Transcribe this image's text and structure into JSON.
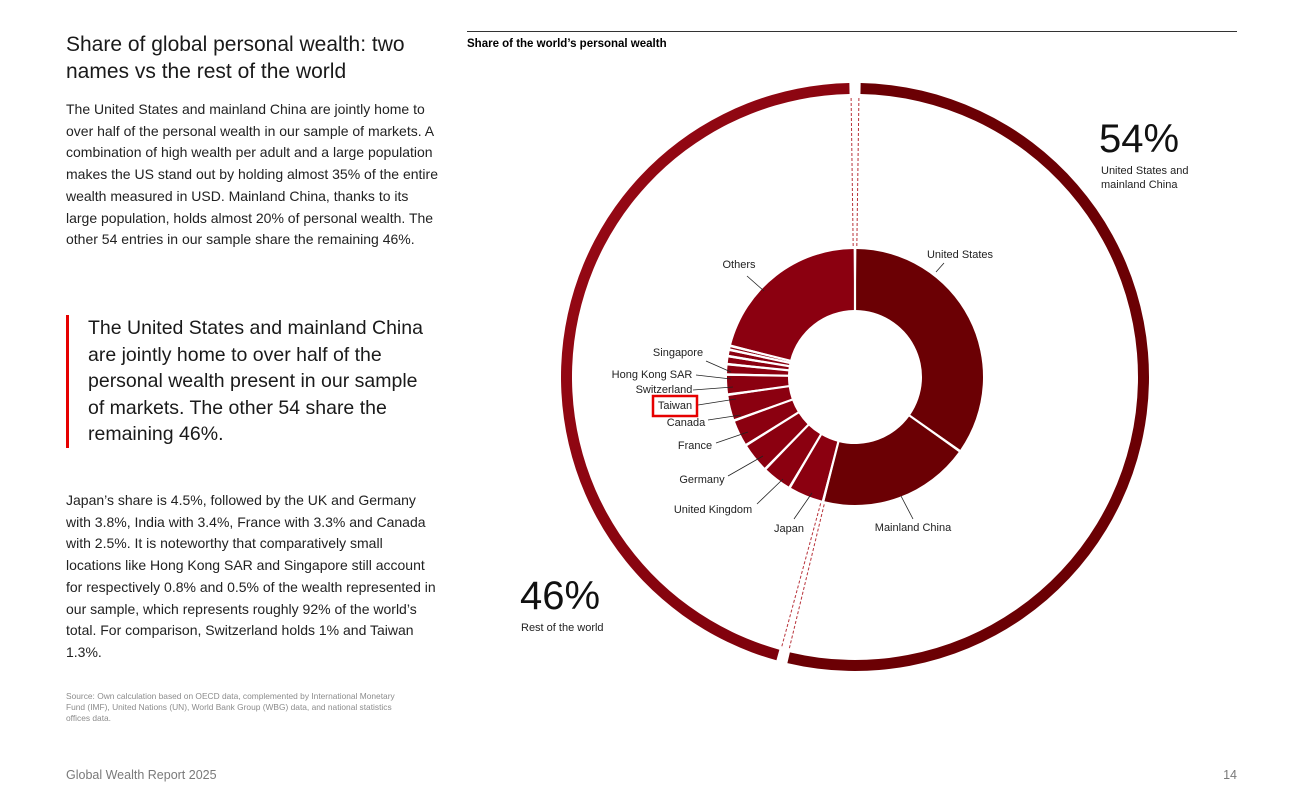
{
  "text": {
    "title": "Share of global personal wealth: two names vs the rest of the world",
    "para1": "The United States and mainland China are jointly home to over half of the personal wealth in our sample of markets. A combination of high wealth per adult and a large population makes the US stand out by holding almost 35% of the entire wealth measured in USD. Mainland China, thanks to its large population, holds almost 20% of personal wealth. The other 54 entries in our sample share the remaining 46%.",
    "quote": "The United States and mainland China are jointly home to over half of the personal wealth present in our sample of markets. The other 54 share the remaining 46%.",
    "para2": "Japan’s share is 4.5%, followed by the UK and Germany with 3.8%, India with 3.4%, France with 3.3% and Canada with 2.5%. It is noteworthy that comparatively small locations like Hong Kong SAR and Singapore still account for respectively 0.8% and 0.5% of the wealth represented in our sample, which represents roughly 92% of the world’s total. For comparison, Switzerland holds 1% and Taiwan 1.3%.",
    "source": "Source: Own calculation based on OECD data, complemented by International Monetary Fund (IMF), United Nations (UN), World Bank Group (WBG) data, and national statistics offices data.",
    "footer_left": "Global Wealth Report 2025",
    "footer_right": "14"
  },
  "chart_data": {
    "type": "pie",
    "title": "Share of the world’s personal wealth",
    "outer_ring": [
      {
        "label": "United States and mainland China",
        "value": 54,
        "value_label": "54%"
      },
      {
        "label": "Rest of the world",
        "value": 46,
        "value_label": "46%"
      }
    ],
    "inner_ring": [
      {
        "label": "United States",
        "value": 34.8
      },
      {
        "label": "Mainland China",
        "value": 19.2
      },
      {
        "label": "Japan",
        "value": 4.5
      },
      {
        "label": "United Kingdom",
        "value": 3.8
      },
      {
        "label": "Germany",
        "value": 3.8
      },
      {
        "label": "",
        "value": 3.4
      },
      {
        "label": "France",
        "value": 3.3
      },
      {
        "label": "Canada",
        "value": 2.5
      },
      {
        "label": "Taiwan",
        "value": 1.3,
        "highlighted": true
      },
      {
        "label": "Switzerland",
        "value": 1.0
      },
      {
        "label": "Hong Kong SAR",
        "value": 0.8
      },
      {
        "label": "Singapore",
        "value": 0.5
      },
      {
        "label": "Others",
        "value": 21.1
      }
    ],
    "colors": {
      "us_china": "#6b0004",
      "rest": "#8b0010",
      "highlight_box": "#e60000"
    }
  }
}
